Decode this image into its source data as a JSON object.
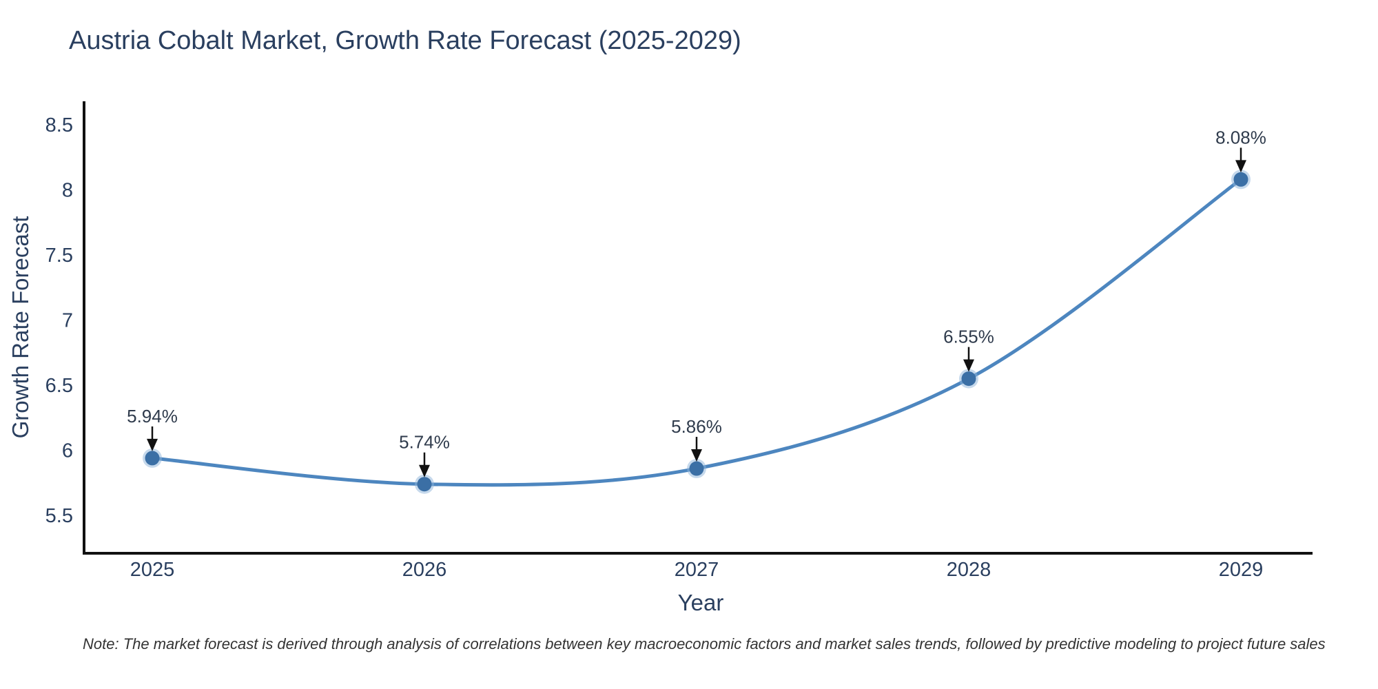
{
  "page": {
    "title": "Austria Cobalt Market, Growth Rate Forecast (2025-2029)",
    "note": "Note: The market forecast is derived through analysis of correlations between key macroeconomic factors and market sales trends, followed by predictive modeling to project future sales"
  },
  "chart_data": {
    "type": "line",
    "title": "Austria Cobalt Market, Growth Rate Forecast (2025-2029)",
    "xlabel": "Year",
    "ylabel": "Growth Rate Forecast",
    "x": [
      2025,
      2026,
      2027,
      2028,
      2029
    ],
    "series": [
      {
        "name": "Growth Rate Forecast",
        "values": [
          5.94,
          5.74,
          5.86,
          6.55,
          8.08
        ]
      }
    ],
    "point_labels": [
      "5.94%",
      "5.74%",
      "5.86%",
      "6.55%",
      "8.08%"
    ],
    "y_ticks": [
      5.5,
      6.0,
      6.5,
      7.0,
      7.5,
      8.0,
      8.5
    ],
    "y_tick_labels": [
      "5.5",
      "6",
      "6.5",
      "7",
      "7.5",
      "8",
      "8.5"
    ],
    "ylim": [
      5.22,
      8.68
    ],
    "line_shape": "spline",
    "grid": false,
    "legend_position": "none",
    "colors": {
      "line": "#4d86bf",
      "marker": "#3b6fa5",
      "marker_halo": "#8db4da",
      "axis_line": "#111111",
      "text": "#2a3f5f",
      "annotation_text": "#2f3b4c",
      "annotation_arrow": "#111111",
      "note_text": "#333333"
    }
  }
}
